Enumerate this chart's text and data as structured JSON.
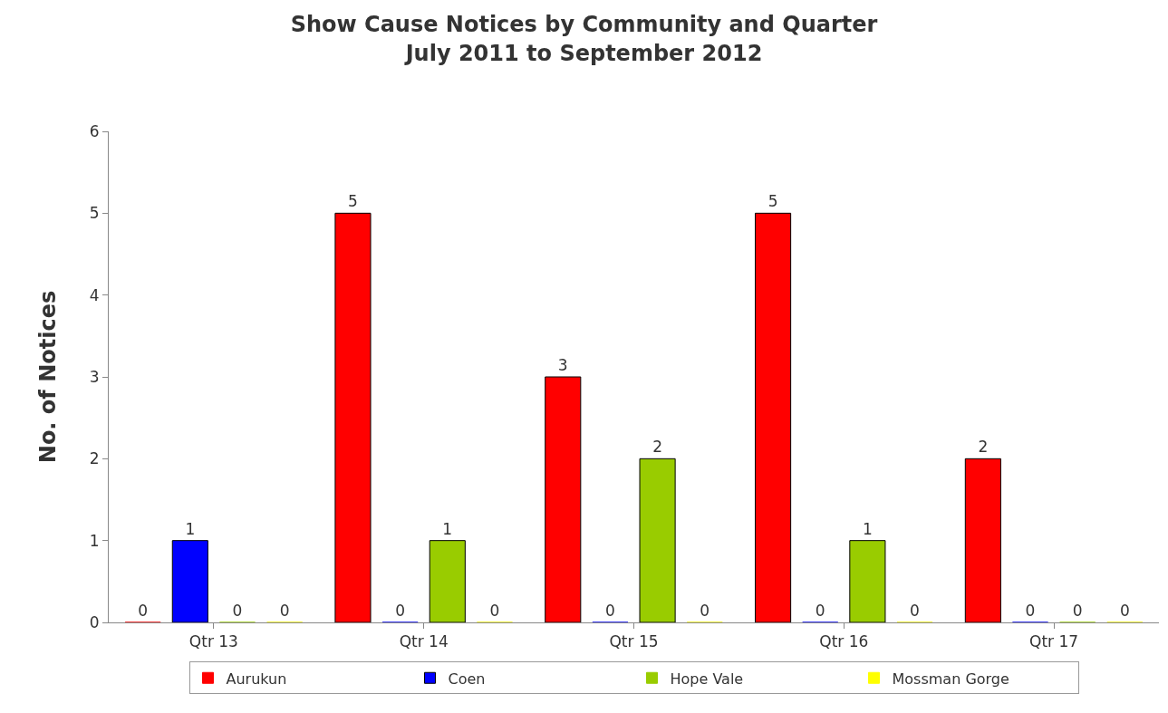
{
  "chart_data": {
    "type": "bar",
    "title": "Show Cause Notices by Community and Quarter\nJuly 2011 to September 2012",
    "ylabel": "No. of Notices",
    "categories": [
      "Qtr 13",
      "Qtr 14",
      "Qtr 15",
      "Qtr 16",
      "Qtr 17"
    ],
    "series": [
      {
        "name": "Aurukun",
        "color": "#ff0000",
        "values": [
          0,
          5,
          3,
          5,
          2
        ]
      },
      {
        "name": "Coen",
        "color": "#0000ff",
        "values": [
          1,
          0,
          0,
          0,
          0
        ]
      },
      {
        "name": "Hope Vale",
        "color": "#99cc00",
        "values": [
          0,
          1,
          2,
          1,
          0
        ]
      },
      {
        "name": "Mossman Gorge",
        "color": "#ffff00",
        "values": [
          0,
          0,
          0,
          0,
          0
        ]
      }
    ],
    "ylim": [
      0,
      6
    ],
    "yticks": [
      0,
      1,
      2,
      3,
      4,
      5,
      6
    ],
    "grid": false,
    "legend": "bottom",
    "data_labels": true
  }
}
